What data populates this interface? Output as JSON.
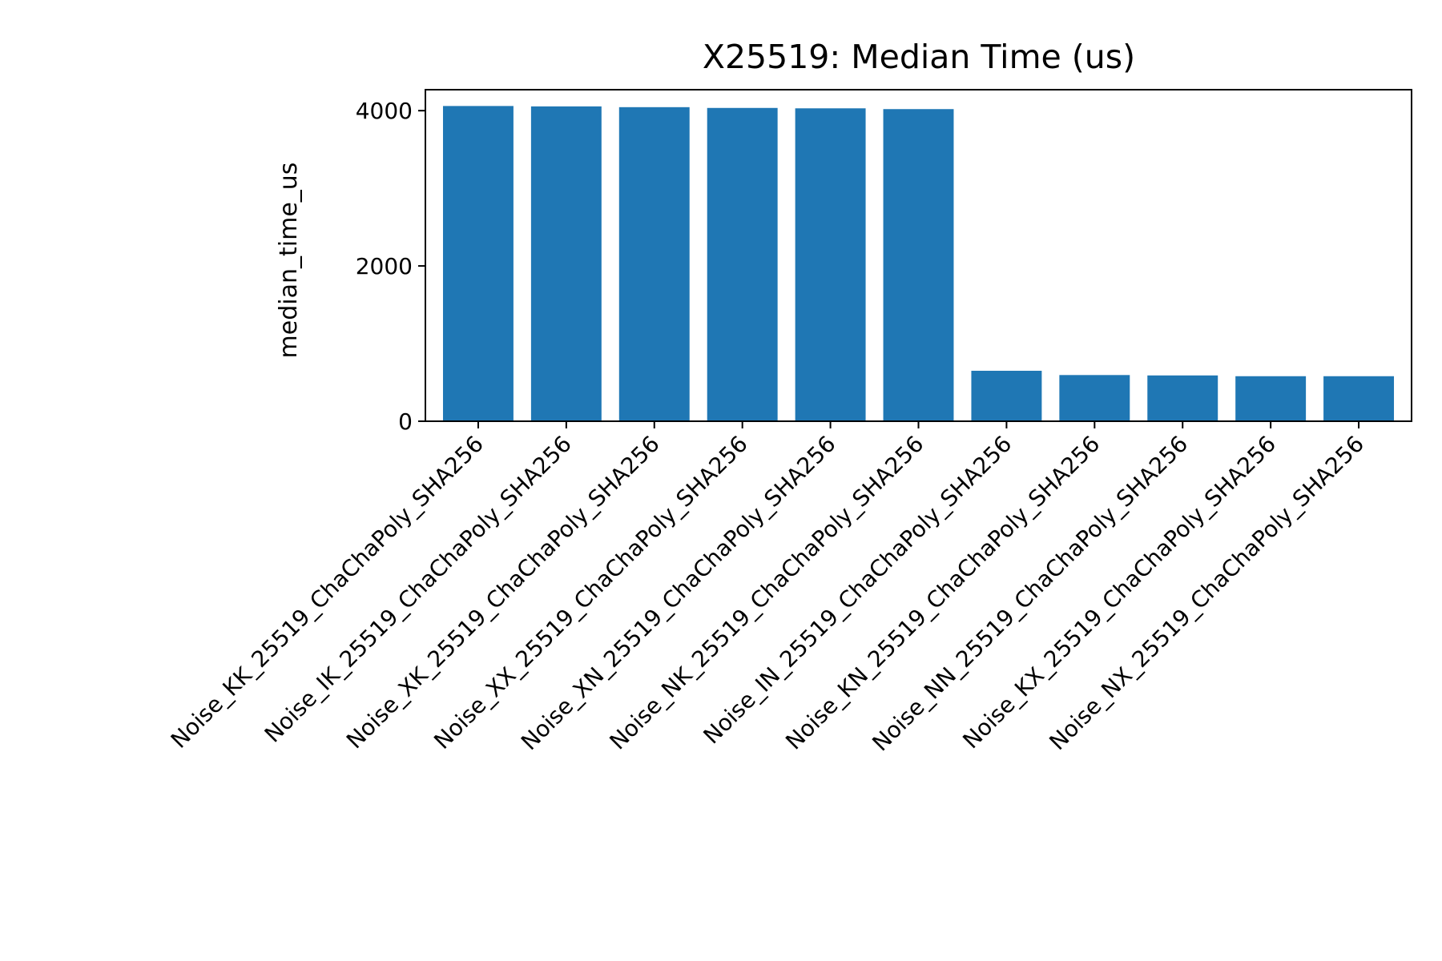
{
  "chart_data": {
    "type": "bar",
    "title": "X25519: Median Time (us)",
    "xlabel": "",
    "ylabel": "median_time_us",
    "ylim": [
      0,
      4270
    ],
    "yticks": [
      0,
      2000,
      4000
    ],
    "bar_color": "#1f77b4",
    "grid": false,
    "categories": [
      "Noise_KK_25519_ChaChaPoly_SHA256",
      "Noise_IK_25519_ChaChaPoly_SHA256",
      "Noise_XK_25519_ChaChaPoly_SHA256",
      "Noise_XX_25519_ChaChaPoly_SHA256",
      "Noise_XN_25519_ChaChaPoly_SHA256",
      "Noise_NK_25519_ChaChaPoly_SHA256",
      "Noise_IN_25519_ChaChaPoly_SHA256",
      "Noise_KN_25519_ChaChaPoly_SHA256",
      "Noise_NN_25519_ChaChaPoly_SHA256",
      "Noise_KX_25519_ChaChaPoly_SHA256",
      "Noise_NX_25519_ChaChaPoly_SHA256"
    ],
    "values": [
      4060,
      4055,
      4045,
      4035,
      4030,
      4020,
      650,
      595,
      590,
      580,
      580
    ]
  }
}
